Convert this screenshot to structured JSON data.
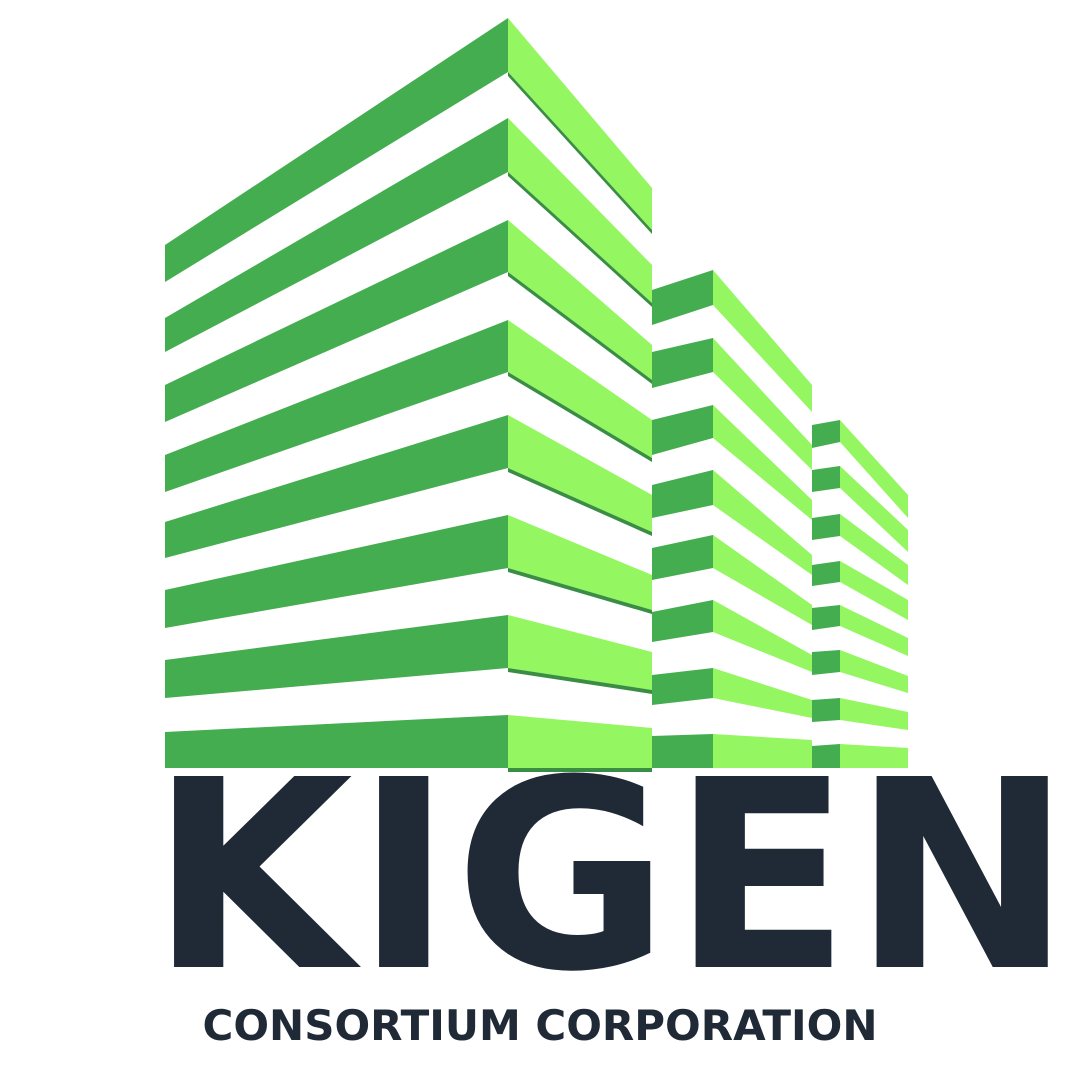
{
  "logo": {
    "wordmark": "KIGEN",
    "tagline": "CONSORTIUM CORPORATION",
    "icon": "building-stripes-icon"
  },
  "colors": {
    "dark_green": "#44AD50",
    "light_green": "#94F660",
    "shadow_green": "#3A8E44",
    "text": "#202A36",
    "background": "#FFFFFF"
  }
}
